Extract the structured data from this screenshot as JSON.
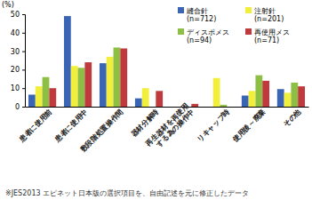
{
  "chart_data": {
    "type": "bar",
    "y_label": "(%)",
    "footnote": "※JES2013 エピネット日本版の選択項目を、自由記述を元に修正したデータ",
    "categories": [
      "患者に使用前",
      "患者に使用中",
      "数段階処置操作間",
      "器材分解時",
      "再生器材を再使用\nする為の操作中",
      "リキャップ時",
      "使用後～廃棄",
      "その他"
    ],
    "series": [
      {
        "name": "縫合針(n=712)",
        "color": "#3a65b5",
        "values": [
          6.5,
          49,
          23.5,
          4.5,
          0,
          0,
          6,
          9.5
        ]
      },
      {
        "name": "注射針(n=201)",
        "color": "#f2ee3c",
        "values": [
          11,
          22,
          27,
          10,
          0,
          15.5,
          8.5,
          7.5
        ]
      },
      {
        "name": "ディスポメス(n=94)",
        "color": "#8dbf45",
        "values": [
          16,
          21,
          32,
          0,
          0,
          1,
          17,
          13
        ]
      },
      {
        "name": "再使用メス(n=71)",
        "color": "#c03a3d",
        "values": [
          10,
          24,
          31.5,
          8.5,
          1.5,
          0,
          14,
          11
        ]
      }
    ],
    "ylim": [
      0,
      50
    ],
    "yticks": [
      0,
      10,
      20,
      30,
      40,
      50
    ],
    "grid": false,
    "legend": "top-right"
  }
}
